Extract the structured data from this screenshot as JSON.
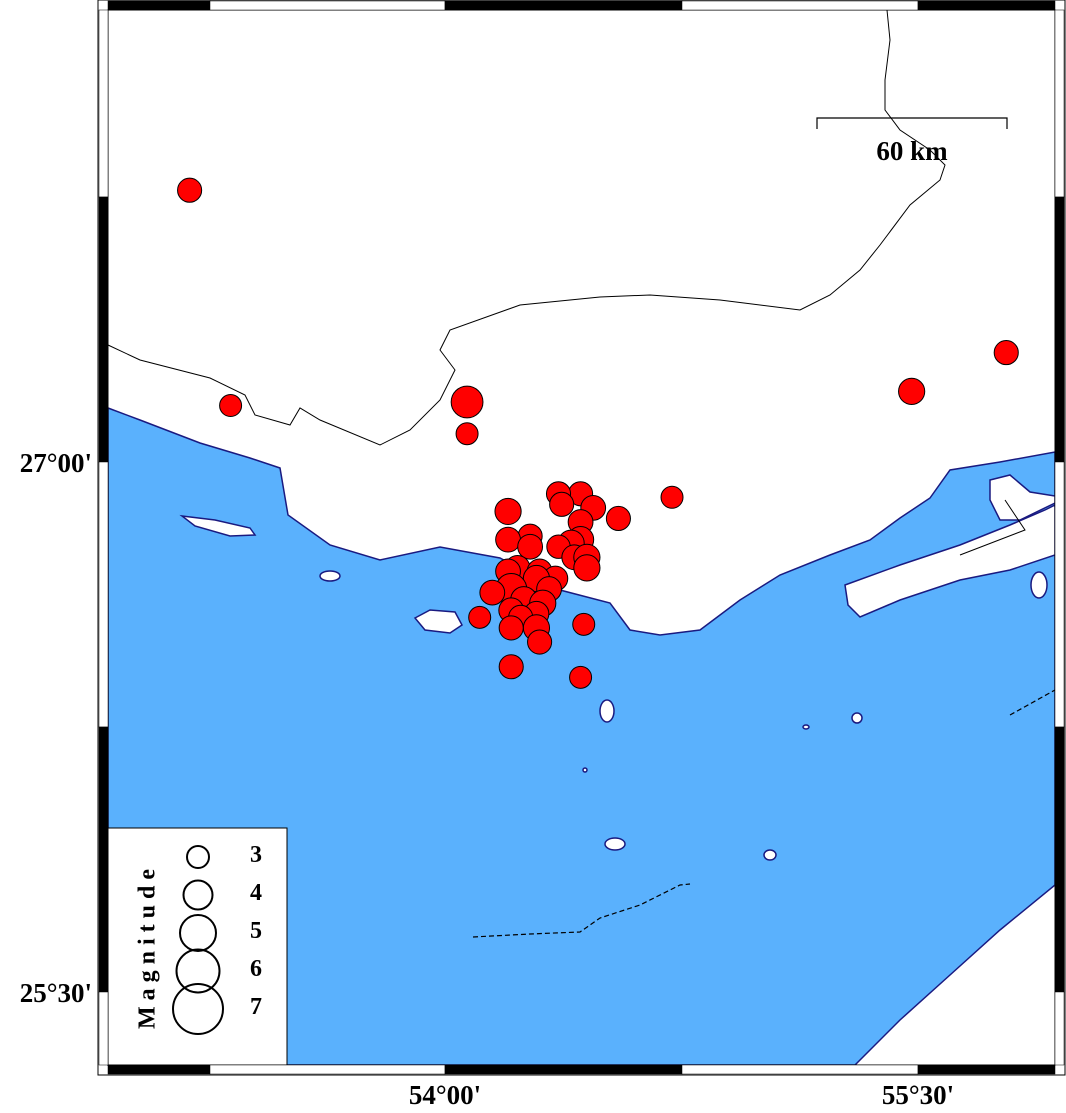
{
  "map": {
    "colors": {
      "sea": "#5ab1fd",
      "land": "#ffffff",
      "coast": "#1a1a80",
      "event_fill": "#ff0000",
      "event_stroke": "#000000"
    },
    "lon_ticks": [
      {
        "value": 54.0,
        "label": "54°00'"
      },
      {
        "value": 55.5,
        "label": "55°30'"
      }
    ],
    "lat_ticks": [
      {
        "value": 27.0,
        "label": "27°00'"
      },
      {
        "value": 25.5,
        "label": "25°30'"
      }
    ],
    "scale_bar": {
      "label": "60 km"
    }
  },
  "legend": {
    "title": "Magnitude",
    "magnitudes": [
      {
        "label": "3",
        "value": 3
      },
      {
        "label": "4",
        "value": 4
      },
      {
        "label": "5",
        "value": 5
      },
      {
        "label": "6",
        "value": 6
      },
      {
        "label": "7",
        "value": 7
      }
    ]
  },
  "events": [
    {
      "lon": 53.19,
      "lat": 27.77,
      "mag": 3.3
    },
    {
      "lon": 53.32,
      "lat": 27.16,
      "mag": 3.0
    },
    {
      "lon": 54.07,
      "lat": 27.17,
      "mag": 4.4
    },
    {
      "lon": 54.07,
      "lat": 27.08,
      "mag": 3.0
    },
    {
      "lon": 55.48,
      "lat": 27.2,
      "mag": 3.6
    },
    {
      "lon": 55.78,
      "lat": 27.31,
      "mag": 3.3
    },
    {
      "lon": 54.72,
      "lat": 26.9,
      "mag": 3.0
    },
    {
      "lon": 54.36,
      "lat": 26.91,
      "mag": 3.3
    },
    {
      "lon": 54.43,
      "lat": 26.91,
      "mag": 3.3
    },
    {
      "lon": 54.37,
      "lat": 26.88,
      "mag": 3.3
    },
    {
      "lon": 54.47,
      "lat": 26.87,
      "mag": 3.4
    },
    {
      "lon": 54.2,
      "lat": 26.86,
      "mag": 3.6
    },
    {
      "lon": 54.55,
      "lat": 26.84,
      "mag": 3.3
    },
    {
      "lon": 54.43,
      "lat": 26.83,
      "mag": 3.4
    },
    {
      "lon": 54.2,
      "lat": 26.78,
      "mag": 3.4
    },
    {
      "lon": 54.27,
      "lat": 26.79,
      "mag": 3.3
    },
    {
      "lon": 54.27,
      "lat": 26.76,
      "mag": 3.4
    },
    {
      "lon": 54.36,
      "lat": 26.76,
      "mag": 3.2
    },
    {
      "lon": 54.4,
      "lat": 26.77,
      "mag": 3.6
    },
    {
      "lon": 54.43,
      "lat": 26.78,
      "mag": 3.6
    },
    {
      "lon": 54.45,
      "lat": 26.73,
      "mag": 3.6
    },
    {
      "lon": 54.41,
      "lat": 26.73,
      "mag": 3.4
    },
    {
      "lon": 54.45,
      "lat": 26.7,
      "mag": 3.6
    },
    {
      "lon": 54.2,
      "lat": 26.69,
      "mag": 3.4
    },
    {
      "lon": 54.23,
      "lat": 26.7,
      "mag": 3.4
    },
    {
      "lon": 54.3,
      "lat": 26.69,
      "mag": 3.4
    },
    {
      "lon": 54.29,
      "lat": 26.67,
      "mag": 3.6
    },
    {
      "lon": 54.35,
      "lat": 26.67,
      "mag": 3.4
    },
    {
      "lon": 54.15,
      "lat": 26.63,
      "mag": 3.4
    },
    {
      "lon": 54.21,
      "lat": 26.64,
      "mag": 4.3
    },
    {
      "lon": 54.33,
      "lat": 26.64,
      "mag": 3.4
    },
    {
      "lon": 54.25,
      "lat": 26.61,
      "mag": 3.6
    },
    {
      "lon": 54.31,
      "lat": 26.6,
      "mag": 3.6
    },
    {
      "lon": 54.21,
      "lat": 26.58,
      "mag": 3.4
    },
    {
      "lon": 54.29,
      "lat": 26.57,
      "mag": 3.4
    },
    {
      "lon": 54.11,
      "lat": 26.56,
      "mag": 3.0
    },
    {
      "lon": 54.24,
      "lat": 26.56,
      "mag": 3.3
    },
    {
      "lon": 54.21,
      "lat": 26.53,
      "mag": 3.3
    },
    {
      "lon": 54.29,
      "lat": 26.53,
      "mag": 3.6
    },
    {
      "lon": 54.3,
      "lat": 26.49,
      "mag": 3.3
    },
    {
      "lon": 54.44,
      "lat": 26.54,
      "mag": 3.0
    },
    {
      "lon": 54.21,
      "lat": 26.42,
      "mag": 3.3
    },
    {
      "lon": 54.43,
      "lat": 26.39,
      "mag": 3.0
    }
  ]
}
